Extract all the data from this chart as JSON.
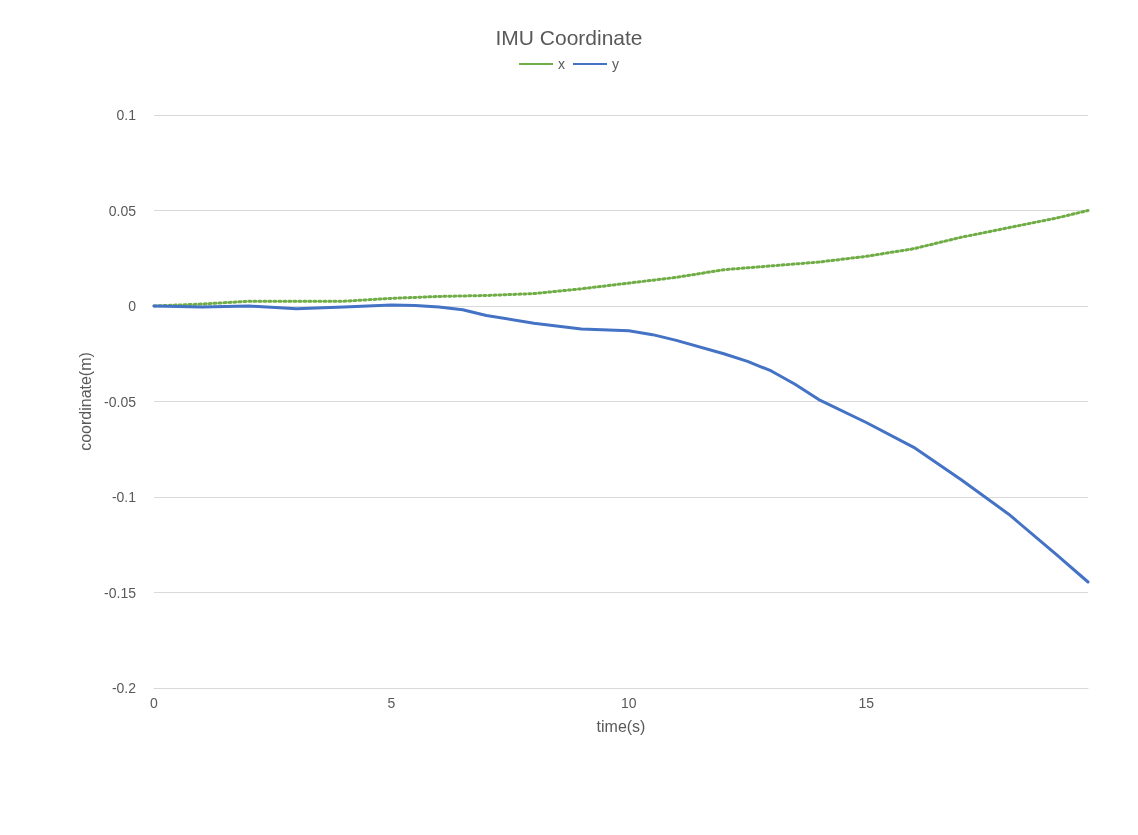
{
  "chart_data": {
    "type": "line",
    "title": "IMU Coordinate",
    "xlabel": "time(s)",
    "ylabel": "coordinate(m)",
    "xlim": [
      0,
      19.67
    ],
    "xticks": [
      0,
      5,
      10,
      15
    ],
    "ylim": [
      -0.2,
      0.1
    ],
    "yticks": [
      -0.2,
      -0.15,
      -0.1,
      -0.05,
      0,
      0.05,
      0.1
    ],
    "grid": "y",
    "legend": "top",
    "marker": "none",
    "series": [
      {
        "name": "x",
        "color": "#70ad47",
        "line_style": "dotted",
        "x": [
          0,
          1,
          2,
          3,
          4,
          5,
          6,
          7,
          8,
          9,
          10,
          11,
          12,
          13,
          14,
          15,
          16,
          17,
          18,
          19,
          19.67
        ],
        "values": [
          0,
          0.001,
          0.0025,
          0.0025,
          0.0025,
          0.004,
          0.005,
          0.0055,
          0.0065,
          0.009,
          0.012,
          0.015,
          0.019,
          0.021,
          0.023,
          0.026,
          0.03,
          0.036,
          0.041,
          0.046,
          0.05
        ]
      },
      {
        "name": "y",
        "color": "#4472c4",
        "line_style": "solid",
        "x": [
          0,
          1,
          2,
          3,
          4,
          5,
          5.5,
          6,
          6.5,
          7,
          8,
          9,
          10,
          10.5,
          11,
          12,
          12.5,
          13,
          13.5,
          14,
          15,
          16,
          17,
          18,
          19,
          19.67
        ],
        "values": [
          0,
          -0.0005,
          0,
          -0.0015,
          -0.0005,
          0.0005,
          0.0003,
          -0.0005,
          -0.002,
          -0.005,
          -0.009,
          -0.012,
          -0.013,
          -0.015,
          -0.018,
          -0.025,
          -0.029,
          -0.034,
          -0.041,
          -0.049,
          -0.061,
          -0.074,
          -0.091,
          -0.109,
          -0.13,
          -0.1445
        ]
      }
    ]
  }
}
